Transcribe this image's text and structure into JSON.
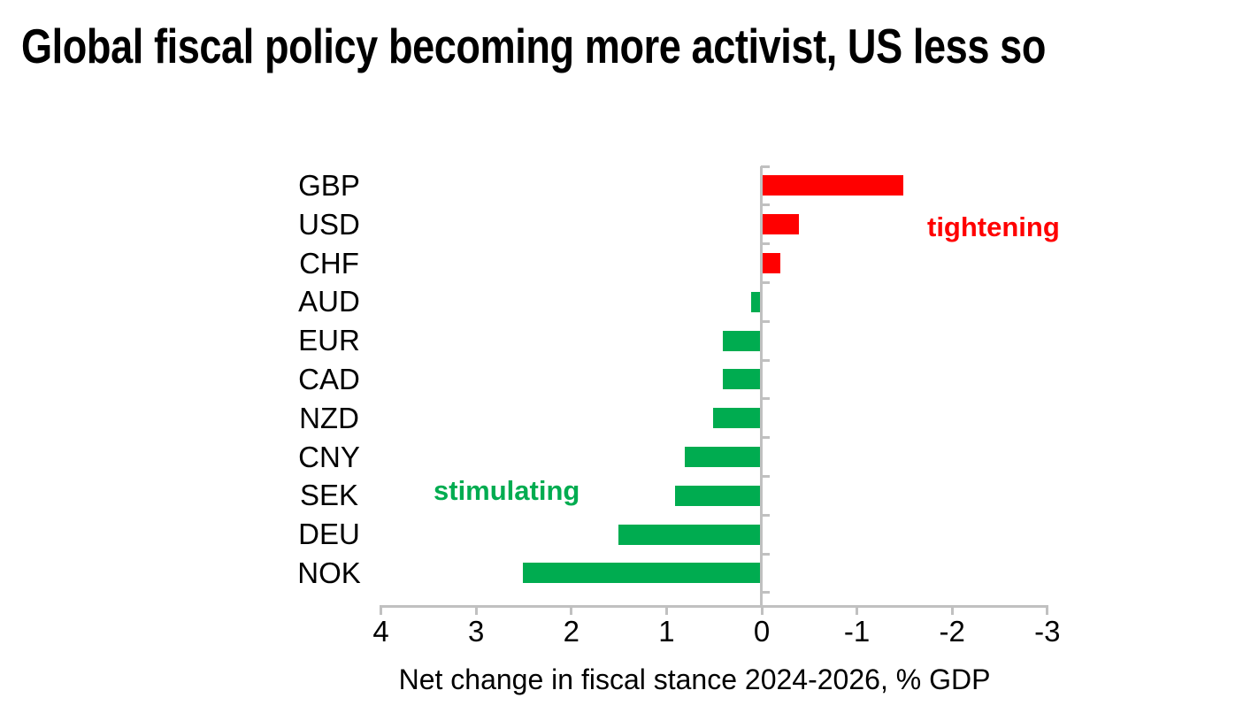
{
  "title": {
    "text": "Global fiscal policy becoming more activist, US less so"
  },
  "chart_data": {
    "type": "bar",
    "orientation": "horizontal",
    "title": "Global fiscal policy becoming more activist, US less so",
    "categories": [
      "GBP",
      "USD",
      "CHF",
      "AUD",
      "EUR",
      "CAD",
      "NZD",
      "CNY",
      "SEK",
      "DEU",
      "NOK"
    ],
    "values": [
      -1.5,
      -0.4,
      -0.2,
      0.1,
      0.4,
      0.4,
      0.5,
      0.8,
      0.9,
      1.5,
      2.5
    ],
    "xlabel": "Net change in fiscal stance 2024-2026, % GDP",
    "ylabel": "",
    "x_ticks": [
      4,
      3,
      2,
      1,
      0,
      -1,
      -2,
      -3
    ],
    "xlim": [
      4,
      -3
    ],
    "x_axis_reversed": true,
    "grid": false,
    "legend": "none",
    "colors": {
      "positive_bar": "#00AC50",
      "negative_bar": "#FF0000",
      "axis": "#C0C0C0",
      "text": "#000000"
    },
    "annotations": [
      {
        "text": "tightening",
        "color": "#FF0000",
        "meaning": "negative values"
      },
      {
        "text": "stimulating",
        "color": "#00AC50",
        "meaning": "positive values"
      }
    ]
  }
}
